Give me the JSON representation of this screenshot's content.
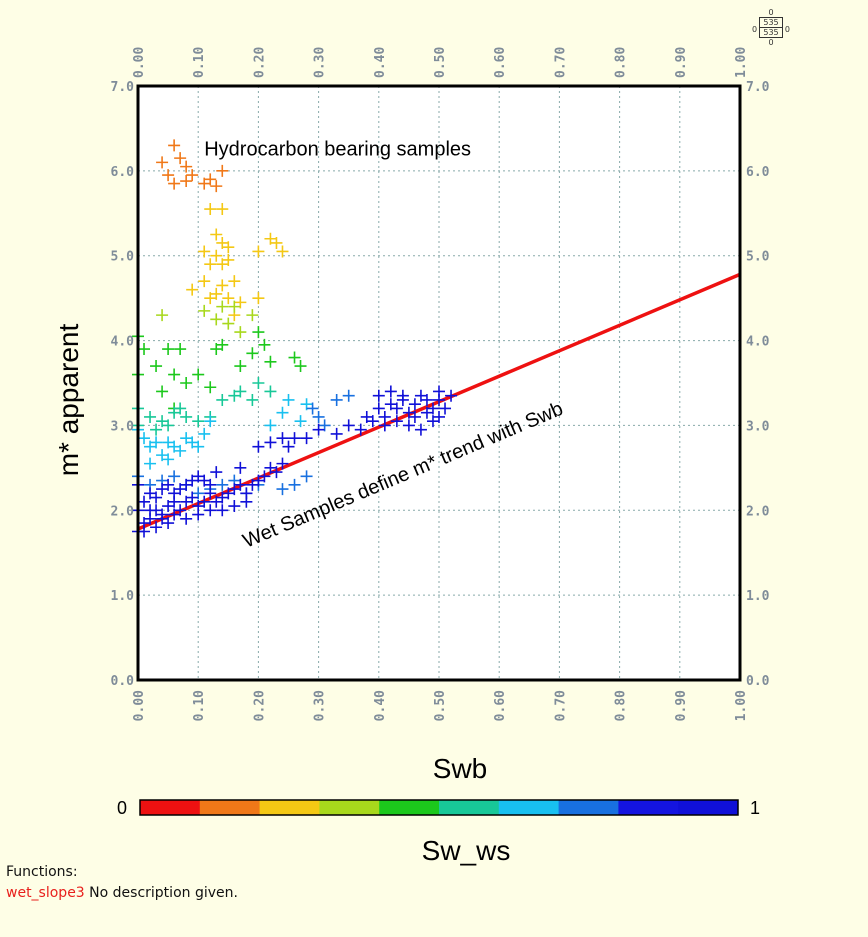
{
  "chart_data": {
    "type": "scatter",
    "xlabel": "Swb",
    "ylabel": "m* apparent",
    "xlim": [
      0,
      1
    ],
    "ylim": [
      0,
      7
    ],
    "x_ticks": [
      "0.00",
      "0.10",
      "0.20",
      "0.30",
      "0.40",
      "0.50",
      "0.60",
      "0.70",
      "0.80",
      "0.90",
      "1.00"
    ],
    "y_ticks": [
      "0.0",
      "1.0",
      "2.0",
      "3.0",
      "4.0",
      "5.0",
      "6.0",
      "7.0"
    ],
    "grid": true,
    "color_scale": {
      "label": "Sw_ws",
      "min_label": "0",
      "max_label": "1",
      "colors": [
        "#ee1111",
        "#f07818",
        "#f4c814",
        "#a8d81c",
        "#1cc81c",
        "#18c898",
        "#18c0f0",
        "#1870e0",
        "#1414e0",
        "#1010d8"
      ]
    },
    "trend_line": {
      "color": "#ee1111",
      "points": [
        [
          0.0,
          1.78
        ],
        [
          1.0,
          4.78
        ]
      ]
    },
    "annotations": [
      {
        "text": "Hydrocarbon bearing samples",
        "x": 0.11,
        "y": 6.3
      },
      {
        "text": "Wet Samples define m* trend with Swb",
        "x": 0.18,
        "y": 1.65
      }
    ],
    "series": [
      {
        "color_index": 1,
        "points": [
          [
            0.06,
            6.3
          ],
          [
            0.04,
            6.1
          ],
          [
            0.07,
            6.15
          ],
          [
            0.08,
            6.05
          ],
          [
            0.05,
            5.95
          ],
          [
            0.09,
            5.95
          ],
          [
            0.11,
            5.85
          ],
          [
            0.12,
            5.9
          ],
          [
            0.13,
            5.82
          ],
          [
            0.14,
            6.0
          ],
          [
            0.06,
            5.85
          ],
          [
            0.08,
            5.88
          ]
        ]
      },
      {
        "color_index": 2,
        "points": [
          [
            0.12,
            5.55
          ],
          [
            0.14,
            5.55
          ],
          [
            0.13,
            5.25
          ],
          [
            0.14,
            5.15
          ],
          [
            0.11,
            5.05
          ],
          [
            0.13,
            5.0
          ],
          [
            0.15,
            5.1
          ],
          [
            0.12,
            4.9
          ],
          [
            0.14,
            4.9
          ],
          [
            0.15,
            4.95
          ],
          [
            0.2,
            5.05
          ],
          [
            0.23,
            5.15
          ],
          [
            0.24,
            5.05
          ],
          [
            0.22,
            5.2
          ],
          [
            0.12,
            4.5
          ],
          [
            0.13,
            4.55
          ],
          [
            0.11,
            4.7
          ],
          [
            0.09,
            4.6
          ],
          [
            0.16,
            4.3
          ],
          [
            0.15,
            4.5
          ],
          [
            0.17,
            4.45
          ],
          [
            0.2,
            4.5
          ],
          [
            0.14,
            4.65
          ],
          [
            0.16,
            4.7
          ]
        ]
      },
      {
        "color_index": 3,
        "points": [
          [
            0.04,
            4.3
          ],
          [
            0.11,
            4.35
          ],
          [
            0.13,
            4.25
          ],
          [
            0.15,
            4.2
          ],
          [
            0.17,
            4.1
          ],
          [
            0.16,
            4.4
          ],
          [
            0.19,
            4.3
          ],
          [
            0.14,
            4.4
          ]
        ]
      },
      {
        "color_index": 4,
        "points": [
          [
            0.0,
            4.05
          ],
          [
            0.01,
            3.9
          ],
          [
            0.05,
            3.9
          ],
          [
            0.07,
            3.9
          ],
          [
            0.03,
            3.7
          ],
          [
            0.06,
            3.6
          ],
          [
            0.08,
            3.5
          ],
          [
            0.1,
            3.6
          ],
          [
            0.12,
            3.45
          ],
          [
            0.13,
            3.9
          ],
          [
            0.14,
            3.95
          ],
          [
            0.17,
            3.7
          ],
          [
            0.19,
            3.85
          ],
          [
            0.2,
            4.1
          ],
          [
            0.21,
            3.95
          ],
          [
            0.22,
            3.75
          ],
          [
            0.26,
            3.8
          ],
          [
            0.27,
            3.7
          ],
          [
            0.0,
            3.6
          ],
          [
            0.04,
            3.4
          ],
          [
            0.06,
            3.2
          ]
        ]
      },
      {
        "color_index": 5,
        "points": [
          [
            0.0,
            3.2
          ],
          [
            0.02,
            3.1
          ],
          [
            0.04,
            3.05
          ],
          [
            0.06,
            3.15
          ],
          [
            0.07,
            3.2
          ],
          [
            0.1,
            3.05
          ],
          [
            0.12,
            3.1
          ],
          [
            0.14,
            3.3
          ],
          [
            0.16,
            3.35
          ],
          [
            0.17,
            3.4
          ],
          [
            0.19,
            3.3
          ],
          [
            0.2,
            3.5
          ],
          [
            0.22,
            3.4
          ],
          [
            0.0,
            3.0
          ],
          [
            0.03,
            2.95
          ],
          [
            0.05,
            3.0
          ],
          [
            0.08,
            3.1
          ]
        ]
      },
      {
        "color_index": 6,
        "points": [
          [
            0.0,
            2.95
          ],
          [
            0.01,
            2.85
          ],
          [
            0.02,
            2.75
          ],
          [
            0.03,
            2.8
          ],
          [
            0.04,
            2.65
          ],
          [
            0.05,
            2.8
          ],
          [
            0.06,
            2.75
          ],
          [
            0.07,
            2.7
          ],
          [
            0.08,
            2.85
          ],
          [
            0.09,
            2.8
          ],
          [
            0.1,
            2.75
          ],
          [
            0.11,
            2.9
          ],
          [
            0.12,
            3.05
          ],
          [
            0.05,
            2.6
          ],
          [
            0.02,
            2.55
          ],
          [
            0.24,
            3.15
          ],
          [
            0.25,
            3.3
          ],
          [
            0.27,
            3.05
          ],
          [
            0.28,
            3.25
          ],
          [
            0.22,
            3.0
          ]
        ]
      },
      {
        "color_index": 7,
        "points": [
          [
            0.0,
            2.4
          ],
          [
            0.02,
            2.3
          ],
          [
            0.04,
            2.35
          ],
          [
            0.06,
            2.4
          ],
          [
            0.08,
            2.3
          ],
          [
            0.1,
            2.2
          ],
          [
            0.12,
            2.25
          ],
          [
            0.14,
            2.3
          ],
          [
            0.16,
            2.35
          ],
          [
            0.18,
            2.2
          ],
          [
            0.2,
            2.3
          ],
          [
            0.24,
            2.25
          ],
          [
            0.26,
            2.3
          ],
          [
            0.28,
            2.4
          ],
          [
            0.29,
            3.2
          ],
          [
            0.3,
            3.1
          ],
          [
            0.33,
            3.3
          ],
          [
            0.35,
            3.35
          ],
          [
            0.31,
            3.0
          ]
        ]
      },
      {
        "color_index": 9,
        "points": [
          [
            0.0,
            1.75
          ],
          [
            0.01,
            1.85
          ],
          [
            0.02,
            1.9
          ],
          [
            0.03,
            2.0
          ],
          [
            0.04,
            1.95
          ],
          [
            0.05,
            2.05
          ],
          [
            0.06,
            2.1
          ],
          [
            0.07,
            2.0
          ],
          [
            0.08,
            2.1
          ],
          [
            0.09,
            2.15
          ],
          [
            0.1,
            2.05
          ],
          [
            0.11,
            2.1
          ],
          [
            0.12,
            2.2
          ],
          [
            0.13,
            2.1
          ],
          [
            0.14,
            2.15
          ],
          [
            0.15,
            2.2
          ],
          [
            0.16,
            2.25
          ],
          [
            0.17,
            2.3
          ],
          [
            0.18,
            2.2
          ],
          [
            0.19,
            2.3
          ],
          [
            0.2,
            2.35
          ],
          [
            0.21,
            2.4
          ],
          [
            0.22,
            2.5
          ],
          [
            0.23,
            2.45
          ],
          [
            0.24,
            2.55
          ],
          [
            0.0,
            2.0
          ],
          [
            0.01,
            2.1
          ],
          [
            0.02,
            2.2
          ],
          [
            0.03,
            2.15
          ],
          [
            0.04,
            2.25
          ],
          [
            0.05,
            2.3
          ],
          [
            0.06,
            2.2
          ],
          [
            0.07,
            2.25
          ],
          [
            0.08,
            2.3
          ],
          [
            0.09,
            2.35
          ],
          [
            0.1,
            2.4
          ],
          [
            0.11,
            2.35
          ],
          [
            0.12,
            2.3
          ],
          [
            0.0,
            2.3
          ],
          [
            0.02,
            2.0
          ],
          [
            0.04,
            1.9
          ],
          [
            0.06,
            1.95
          ],
          [
            0.08,
            1.9
          ],
          [
            0.1,
            1.95
          ],
          [
            0.12,
            2.0
          ],
          [
            0.14,
            2.0
          ],
          [
            0.16,
            2.05
          ],
          [
            0.18,
            2.1
          ],
          [
            0.01,
            1.75
          ],
          [
            0.03,
            1.8
          ],
          [
            0.05,
            1.85
          ],
          [
            0.13,
            2.45
          ],
          [
            0.17,
            2.5
          ],
          [
            0.2,
            2.75
          ],
          [
            0.22,
            2.8
          ],
          [
            0.24,
            2.85
          ],
          [
            0.26,
            2.85
          ],
          [
            0.28,
            2.85
          ],
          [
            0.25,
            2.75
          ],
          [
            0.3,
            2.95
          ],
          [
            0.33,
            2.9
          ],
          [
            0.35,
            3.0
          ],
          [
            0.37,
            2.95
          ],
          [
            0.38,
            3.1
          ],
          [
            0.39,
            3.05
          ],
          [
            0.4,
            3.2
          ],
          [
            0.41,
            3.1
          ],
          [
            0.42,
            3.25
          ],
          [
            0.43,
            3.2
          ],
          [
            0.44,
            3.3
          ],
          [
            0.45,
            3.15
          ],
          [
            0.46,
            3.25
          ],
          [
            0.47,
            3.35
          ],
          [
            0.48,
            3.3
          ],
          [
            0.49,
            3.2
          ],
          [
            0.5,
            3.3
          ],
          [
            0.41,
            3.0
          ],
          [
            0.43,
            3.05
          ],
          [
            0.45,
            3.0
          ],
          [
            0.47,
            2.95
          ],
          [
            0.49,
            3.05
          ],
          [
            0.42,
            3.4
          ],
          [
            0.44,
            3.35
          ],
          [
            0.46,
            3.1
          ],
          [
            0.48,
            3.15
          ],
          [
            0.5,
            3.1
          ],
          [
            0.4,
            3.35
          ],
          [
            0.52,
            3.35
          ],
          [
            0.51,
            3.2
          ],
          [
            0.5,
            3.4
          ]
        ]
      }
    ]
  },
  "corner": {
    "top": "0",
    "val1": "535",
    "val2": "535",
    "left": "0",
    "right": "0",
    "bottom": "0"
  },
  "functions": {
    "header": "Functions:",
    "name": "wet_slope3",
    "description": "No description given."
  }
}
